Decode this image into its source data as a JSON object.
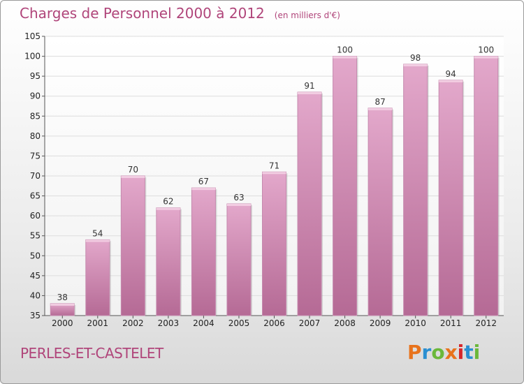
{
  "chart_data": {
    "type": "bar",
    "title": "Charges de Personnel 2000 à 2012",
    "subtitle": "(en milliers d'€)",
    "xlabel": "",
    "ylabel": "",
    "categories": [
      "2000",
      "2001",
      "2002",
      "2003",
      "2004",
      "2005",
      "2006",
      "2007",
      "2008",
      "2009",
      "2010",
      "2011",
      "2012"
    ],
    "values": [
      38,
      54,
      70,
      62,
      67,
      63,
      71,
      91,
      100,
      87,
      98,
      94,
      100
    ],
    "ylim": [
      35,
      105
    ],
    "yticks": [
      35,
      40,
      45,
      50,
      55,
      60,
      65,
      70,
      75,
      80,
      85,
      90,
      95,
      100,
      105
    ],
    "grid": true,
    "bar_color": "#c97fa8"
  },
  "commune": "PERLES-ET-CASTELET",
  "brand": {
    "letters": [
      "P",
      "r",
      "o",
      "x",
      "i",
      "t",
      "i"
    ],
    "colors": [
      "#e8731c",
      "#2a8fd1",
      "#6bb83a",
      "#e8731c",
      "#d6262b",
      "#2a8fd1",
      "#6bb83a"
    ]
  }
}
